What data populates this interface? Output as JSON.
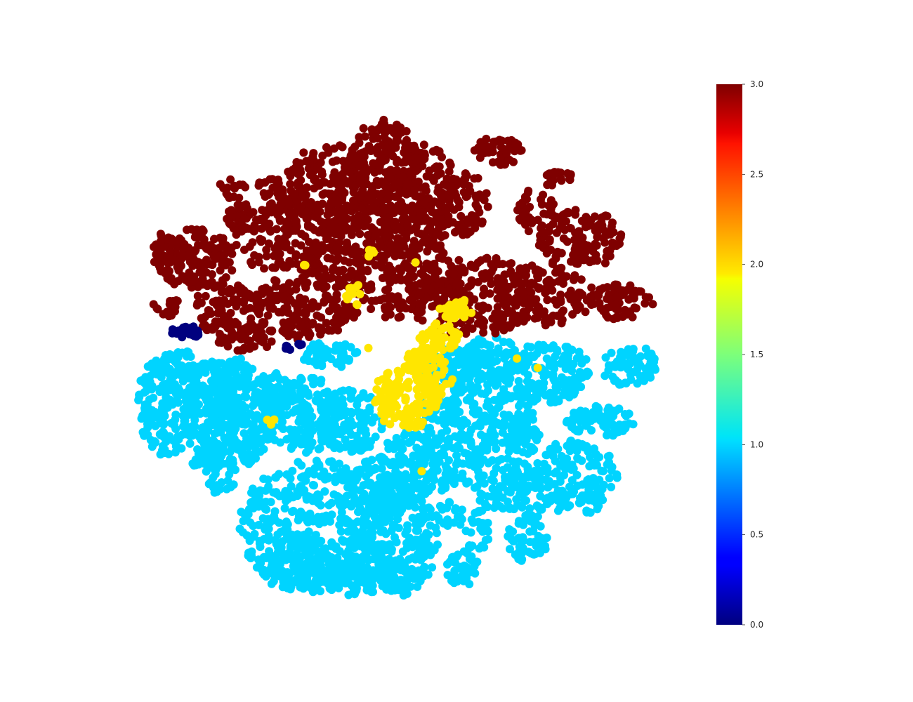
{
  "chart_data": {
    "type": "scatter",
    "title": "",
    "xlabel": "",
    "ylabel": "",
    "axes_visible": false,
    "grid": false,
    "colormap": "jet",
    "color_value_range": [
      0.0,
      3.0
    ],
    "colorbar": {
      "placement": "right",
      "ticks": [
        0.0,
        0.5,
        1.0,
        1.5,
        2.0,
        2.5,
        3.0
      ],
      "tick_labels": [
        "0.0",
        "0.5",
        "1.0",
        "1.5",
        "2.0",
        "2.5",
        "3.0"
      ]
    },
    "clusters": [
      {
        "color_value": 3,
        "color": "#7f0000",
        "extent": "upper half"
      },
      {
        "color_value": 1,
        "color": "#00d4ff",
        "extent": "lower half"
      },
      {
        "color_value": 2,
        "color": "#ffe600",
        "extent": "center band"
      },
      {
        "color_value": 0,
        "color": "#00007f",
        "extent": "small left group"
      }
    ]
  }
}
